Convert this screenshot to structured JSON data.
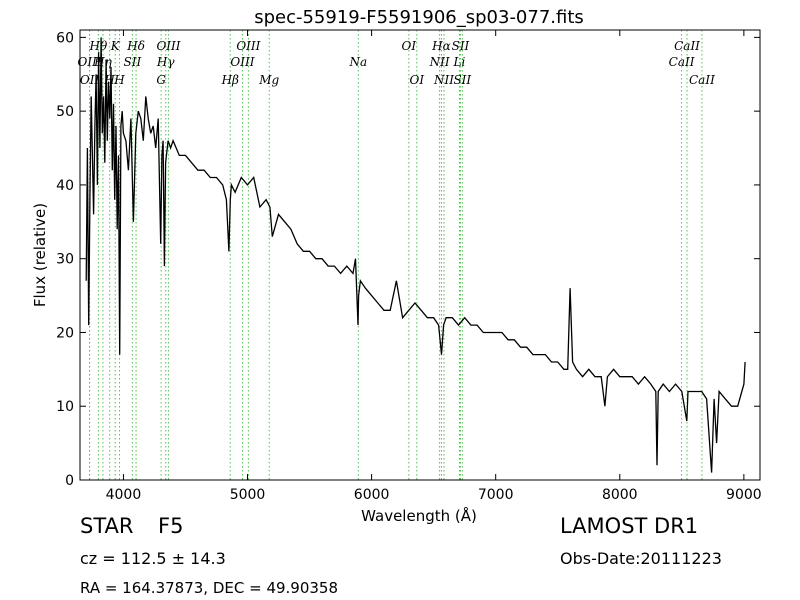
{
  "chart_data": {
    "type": "line",
    "title": "spec-55919-F5591906_sp03-077.fits",
    "xlabel": "Wavelength (Å)",
    "ylabel": "Flux (relative)",
    "xlim": [
      3650,
      9130
    ],
    "ylim": [
      0,
      61
    ],
    "xticks": [
      4000,
      5000,
      6000,
      7000,
      8000,
      9000
    ],
    "yticks": [
      0,
      10,
      20,
      30,
      40,
      50,
      60
    ],
    "grid": false,
    "line_color": "#000000",
    "marker_line_color": "#5cb85c",
    "series": [
      {
        "values_note": "",
        "x": [
          3700,
          3710,
          3720,
          3730,
          3740,
          3750,
          3760,
          3770,
          3780,
          3790,
          3800,
          3810,
          3820,
          3830,
          3840,
          3850,
          3860,
          3870,
          3880,
          3890,
          3900,
          3910,
          3920,
          3930,
          3940,
          3950,
          3960,
          3970,
          3980,
          3990,
          4000,
          4020,
          4040,
          4060,
          4080,
          4100,
          4120,
          4140,
          4160,
          4180,
          4200,
          4220,
          4240,
          4260,
          4280,
          4300,
          4310,
          4320,
          4330,
          4340,
          4360,
          4380,
          4400,
          4450,
          4500,
          4550,
          4600,
          4650,
          4700,
          4750,
          4800,
          4830,
          4850,
          4861,
          4870,
          4900,
          4950,
          5000,
          5050,
          5100,
          5150,
          5180,
          5200,
          5250,
          5300,
          5350,
          5400,
          5450,
          5500,
          5550,
          5600,
          5650,
          5700,
          5750,
          5800,
          5850,
          5870,
          5890,
          5895,
          5910,
          5950,
          6000,
          6050,
          6100,
          6150,
          6200,
          6250,
          6300,
          6350,
          6400,
          6450,
          6500,
          6540,
          6563,
          6580,
          6600,
          6650,
          6700,
          6750,
          6800,
          6850,
          6900,
          6950,
          7000,
          7050,
          7100,
          7150,
          7200,
          7250,
          7300,
          7350,
          7400,
          7450,
          7500,
          7550,
          7580,
          7600,
          7620,
          7650,
          7700,
          7750,
          7800,
          7850,
          7880,
          7900,
          7950,
          8000,
          8050,
          8100,
          8150,
          8200,
          8250,
          8290,
          8300,
          8310,
          8350,
          8400,
          8450,
          8500,
          8540,
          8550,
          8560,
          8600,
          8660,
          8700,
          8740,
          8760,
          8780,
          8800,
          8850,
          8900,
          8950,
          9000,
          9010
        ],
        "y": [
          27,
          45,
          21,
          38,
          52,
          44,
          36,
          48,
          55,
          40,
          58,
          45,
          60,
          47,
          52,
          43,
          57,
          46,
          54,
          49,
          56,
          42,
          51,
          38,
          48,
          34,
          44,
          17,
          48,
          50,
          47,
          46,
          42,
          49,
          35,
          47,
          50,
          49,
          46,
          52,
          49,
          47,
          48,
          45,
          49,
          32,
          44,
          46,
          29,
          43,
          46,
          45,
          46,
          44,
          44,
          43,
          42,
          42,
          41,
          41,
          40,
          38,
          31,
          38,
          40,
          39,
          41,
          40,
          41,
          37,
          38,
          37,
          33,
          36,
          35,
          34,
          32,
          31,
          31,
          30,
          30,
          29,
          29,
          28,
          29,
          28,
          30,
          21,
          25,
          27,
          26,
          25,
          24,
          23,
          23,
          27,
          22,
          23,
          24,
          23,
          22,
          22,
          21,
          17,
          21,
          22,
          22,
          21,
          22,
          21,
          21,
          20,
          20,
          20,
          20,
          19,
          19,
          18,
          18,
          17,
          17,
          17,
          16,
          16,
          15,
          15,
          26,
          16,
          15,
          14,
          15,
          14,
          14,
          10,
          14,
          15,
          14,
          14,
          14,
          13,
          14,
          13,
          12,
          2,
          12,
          13,
          12,
          13,
          12,
          8,
          12,
          12,
          12,
          12,
          11,
          1,
          11,
          5,
          12,
          11,
          10,
          10,
          13,
          16
        ]
      }
    ],
    "lines": [
      {
        "label": "OII",
        "x": 3727,
        "row": 3
      },
      {
        "label": "OIII",
        "x": 3727,
        "row": 2
      },
      {
        "label": "Hθ",
        "x": 3798,
        "row": 1
      },
      {
        "label": "Hη",
        "x": 3835,
        "row": 2
      },
      {
        "label": "H",
        "x": 3889,
        "row": 3
      },
      {
        "label": "K",
        "x": 3934,
        "row": 1
      },
      {
        "label": "SII",
        "x": 4072,
        "row": 2
      },
      {
        "label": "H",
        "x": 3968,
        "row": 3
      },
      {
        "label": "Hδ",
        "x": 4102,
        "row": 1
      },
      {
        "label": "OIII",
        "x": 4363,
        "row": 1
      },
      {
        "label": "Hγ",
        "x": 4341,
        "row": 2
      },
      {
        "label": "G",
        "x": 4304,
        "row": 3
      },
      {
        "label": "OIII",
        "x": 5007,
        "row": 1
      },
      {
        "label": "OIII",
        "x": 4959,
        "row": 2
      },
      {
        "label": "Hβ",
        "x": 4861,
        "row": 3
      },
      {
        "label": "Mg",
        "x": 5175,
        "row": 3
      },
      {
        "label": "Na",
        "x": 5893,
        "row": 2
      },
      {
        "label": "OI",
        "x": 6300,
        "row": 1
      },
      {
        "label": "OI",
        "x": 6364,
        "row": 3
      },
      {
        "label": "Hα",
        "x": 6563,
        "row": 1
      },
      {
        "label": "SII",
        "x": 6716,
        "row": 1
      },
      {
        "label": "NII",
        "x": 6548,
        "row": 2
      },
      {
        "label": "Li",
        "x": 6708,
        "row": 2
      },
      {
        "label": "NII",
        "x": 6583,
        "row": 3
      },
      {
        "label": "SII",
        "x": 6731,
        "row": 3
      },
      {
        "label": "CaII",
        "x": 8542,
        "row": 1
      },
      {
        "label": "CaII",
        "x": 8498,
        "row": 2
      },
      {
        "label": "CaII",
        "x": 8662,
        "row": 3
      }
    ]
  },
  "info": {
    "object_class": "STAR",
    "subclass": "F5",
    "survey": "LAMOST DR1",
    "cz": "cz = 112.5 ± 14.3",
    "obs_date": "Obs-Date:20111223",
    "coords": "RA = 164.37873, DEC = 49.90358"
  }
}
